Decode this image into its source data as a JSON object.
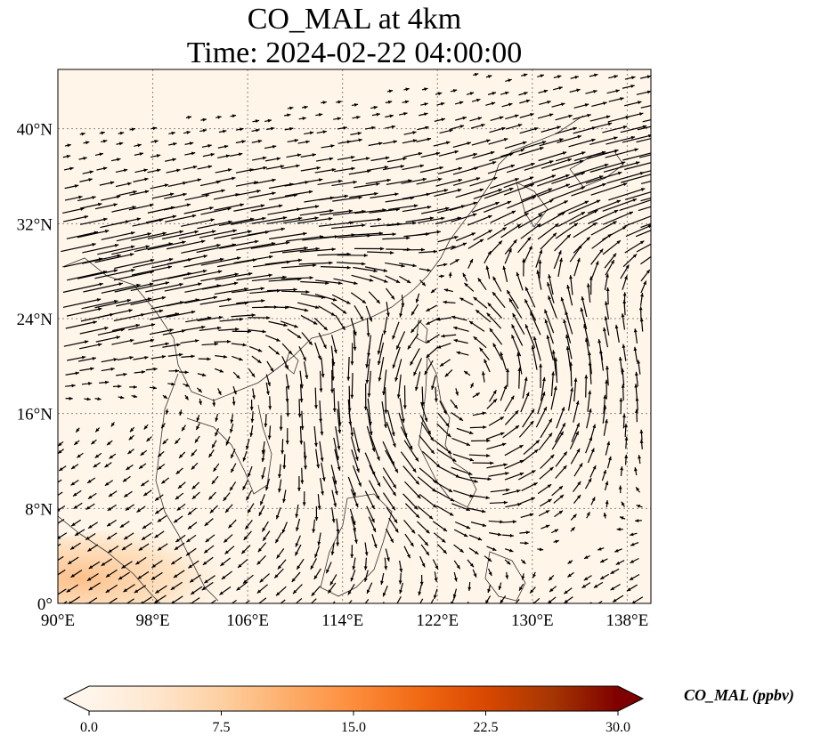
{
  "title": {
    "line1": "CO_MAL at 4km",
    "line2": "Time: 2024-02-22 04:00:00"
  },
  "map": {
    "lon_range": [
      90,
      140
    ],
    "lat_range": [
      0,
      45
    ],
    "lon_ticks": [
      {
        "value": 90,
        "label": "90°E"
      },
      {
        "value": 98,
        "label": "98°E"
      },
      {
        "value": 106,
        "label": "106°E"
      },
      {
        "value": 114,
        "label": "114°E"
      },
      {
        "value": 122,
        "label": "122°E"
      },
      {
        "value": 130,
        "label": "130°E"
      },
      {
        "value": 138,
        "label": "138°E"
      }
    ],
    "lat_ticks": [
      {
        "value": 0,
        "label": "0°"
      },
      {
        "value": 8,
        "label": "8°N"
      },
      {
        "value": 16,
        "label": "16°N"
      },
      {
        "value": 24,
        "label": "24°N"
      },
      {
        "value": 32,
        "label": "32°N"
      },
      {
        "value": 40,
        "label": "40°N"
      }
    ],
    "gridlines": true,
    "background_color": "#fff5e8",
    "wind_arrow_color": "#000000",
    "high_concentration_region": "south-west corner (Sumatra/Malaysia)"
  },
  "colorbar": {
    "title": "CO_MAL (ppbv)",
    "min": 0,
    "max": 30,
    "ticks": [
      "0.0",
      "7.5",
      "15.0",
      "22.5",
      "30.0"
    ],
    "colormap": [
      "#fff5eb",
      "#fee6ce",
      "#fdd0a2",
      "#fdae6b",
      "#fd8d3c",
      "#f16913",
      "#d94801",
      "#a63603",
      "#7f0000"
    ],
    "extend": "both"
  }
}
